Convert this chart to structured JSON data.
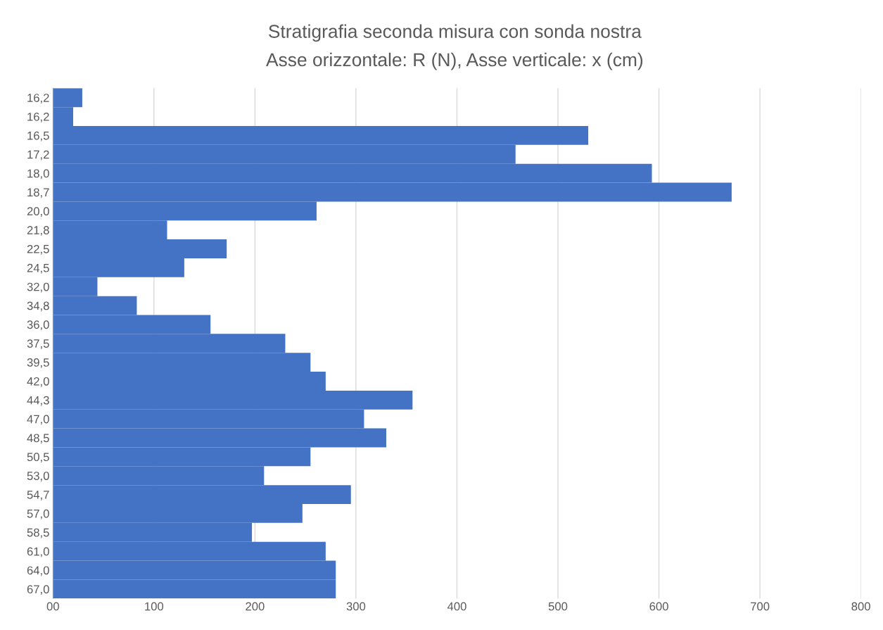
{
  "chart_data": {
    "type": "bar",
    "orientation": "horizontal",
    "title": "Stratigrafia seconda misura con sonda nostra",
    "subtitle": "Asse orizzontale: R (N), Asse verticale: x (cm)",
    "categories": [
      "16,2",
      "16,2",
      "16,5",
      "17,2",
      "18,0",
      "18,7",
      "20,0",
      "21,8",
      "22,5",
      "24,5",
      "32,0",
      "34,8",
      "36,0",
      "37,5",
      "39,5",
      "42,0",
      "44,3",
      "47,0",
      "48,5",
      "50,5",
      "53,0",
      "54,7",
      "57,0",
      "58,5",
      "61,0",
      "64,0",
      "67,0"
    ],
    "values": [
      29,
      20,
      530,
      458,
      593,
      672,
      261,
      113,
      172,
      130,
      44,
      83,
      156,
      230,
      255,
      270,
      356,
      308,
      330,
      255,
      209,
      295,
      247,
      197,
      270,
      280,
      280
    ],
    "color": "#4472c4",
    "xlim": [
      0,
      800
    ],
    "xticks": [
      {
        "value": 0,
        "label": "00"
      },
      100,
      200,
      300,
      400,
      500,
      600,
      700,
      800
    ],
    "grid": "x",
    "legend": false
  }
}
